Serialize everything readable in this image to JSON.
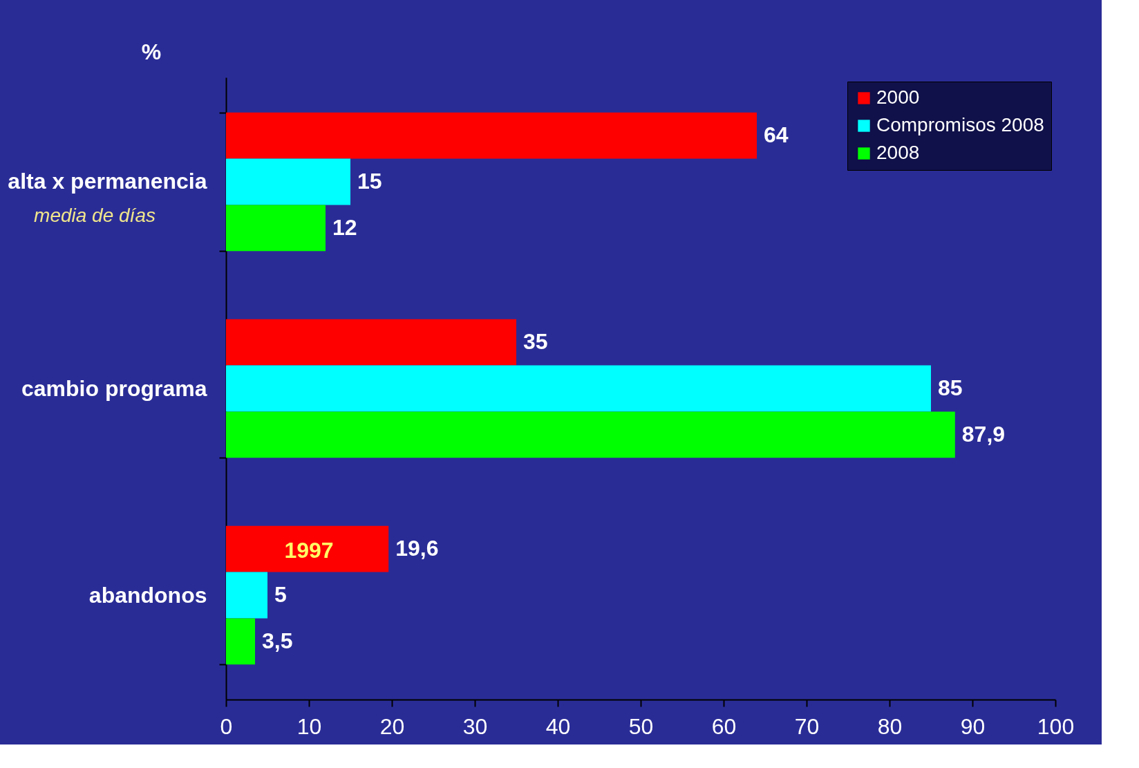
{
  "chart_data": {
    "type": "bar",
    "orientation": "horizontal",
    "xlabel": "%",
    "categories": [
      "alta x permanencia",
      "cambio programa",
      "abandonos"
    ],
    "series": [
      {
        "name": "2000",
        "color": "#ff0000",
        "values": [
          64,
          35,
          19.6
        ],
        "value_labels": [
          "64",
          "35",
          "19,6"
        ]
      },
      {
        "name": "Compromisos 2008",
        "color": "#00ffff",
        "values": [
          15,
          85,
          5
        ],
        "value_labels": [
          "15",
          "85",
          "5"
        ]
      },
      {
        "name": "2008",
        "color": "#00ff00",
        "values": [
          12,
          87.9,
          3.5
        ],
        "value_labels": [
          "12",
          "87,9",
          "3,5"
        ]
      }
    ],
    "xlim": [
      0,
      100
    ],
    "xticks": [
      0,
      10,
      20,
      30,
      40,
      50,
      60,
      70,
      80,
      90,
      100
    ],
    "grid": false,
    "legend": "top right",
    "annotations": [
      "media de días",
      "1997"
    ]
  }
}
